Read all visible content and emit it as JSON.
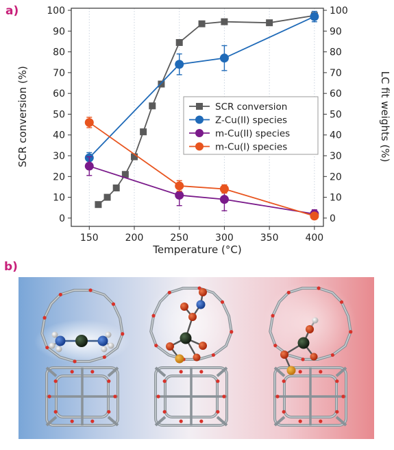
{
  "panel_labels": {
    "a": "a)",
    "b": "b)"
  },
  "colors": {
    "panel_label": "#c8207a",
    "grid": "#c9d3de",
    "axis": "#333333"
  },
  "chart_data": {
    "type": "line",
    "title": "",
    "xlabel": "Temperature (°C)",
    "ylabel": "SCR conversion (%)",
    "y2label": "LC fit weights (%)",
    "xlim": [
      130,
      410
    ],
    "ylim": [
      -4,
      101
    ],
    "x_ticks": [
      150,
      200,
      250,
      300,
      350,
      400
    ],
    "y_ticks": [
      0,
      10,
      20,
      30,
      40,
      50,
      60,
      70,
      80,
      90,
      100
    ],
    "grid": "vertical dotted",
    "legend_position": "center-right",
    "series": [
      {
        "name": "SCR conversion",
        "color": "#5a5a5a",
        "marker": "square",
        "axis": "left",
        "x": [
          160,
          170,
          180,
          190,
          200,
          210,
          220,
          230,
          250,
          275,
          300,
          350,
          400
        ],
        "y": [
          6.5,
          10,
          14.5,
          21,
          29.5,
          41.5,
          54,
          64.5,
          84.5,
          93.5,
          94.5,
          94,
          97.5
        ],
        "err": []
      },
      {
        "name": "Z-Cu(II) species",
        "color": "#1f6ab8",
        "marker": "circle",
        "axis": "right",
        "x": [
          150,
          250,
          300,
          400
        ],
        "y": [
          29,
          74,
          77,
          97
        ],
        "err": [
          2.5,
          5,
          6,
          2.5
        ]
      },
      {
        "name": "m-Cu(II) species",
        "color": "#7a1a8a",
        "marker": "circle",
        "axis": "right",
        "x": [
          150,
          250,
          300,
          400
        ],
        "y": [
          25,
          11,
          9,
          2
        ],
        "err": [
          4.5,
          5,
          5.5,
          2
        ]
      },
      {
        "name": "m-Cu(I) species",
        "color": "#e8541e",
        "marker": "circle",
        "axis": "right",
        "x": [
          150,
          250,
          300,
          400
        ],
        "y": [
          46,
          15.5,
          14,
          1
        ],
        "err": [
          2.5,
          2.5,
          2,
          1
        ]
      }
    ]
  }
}
